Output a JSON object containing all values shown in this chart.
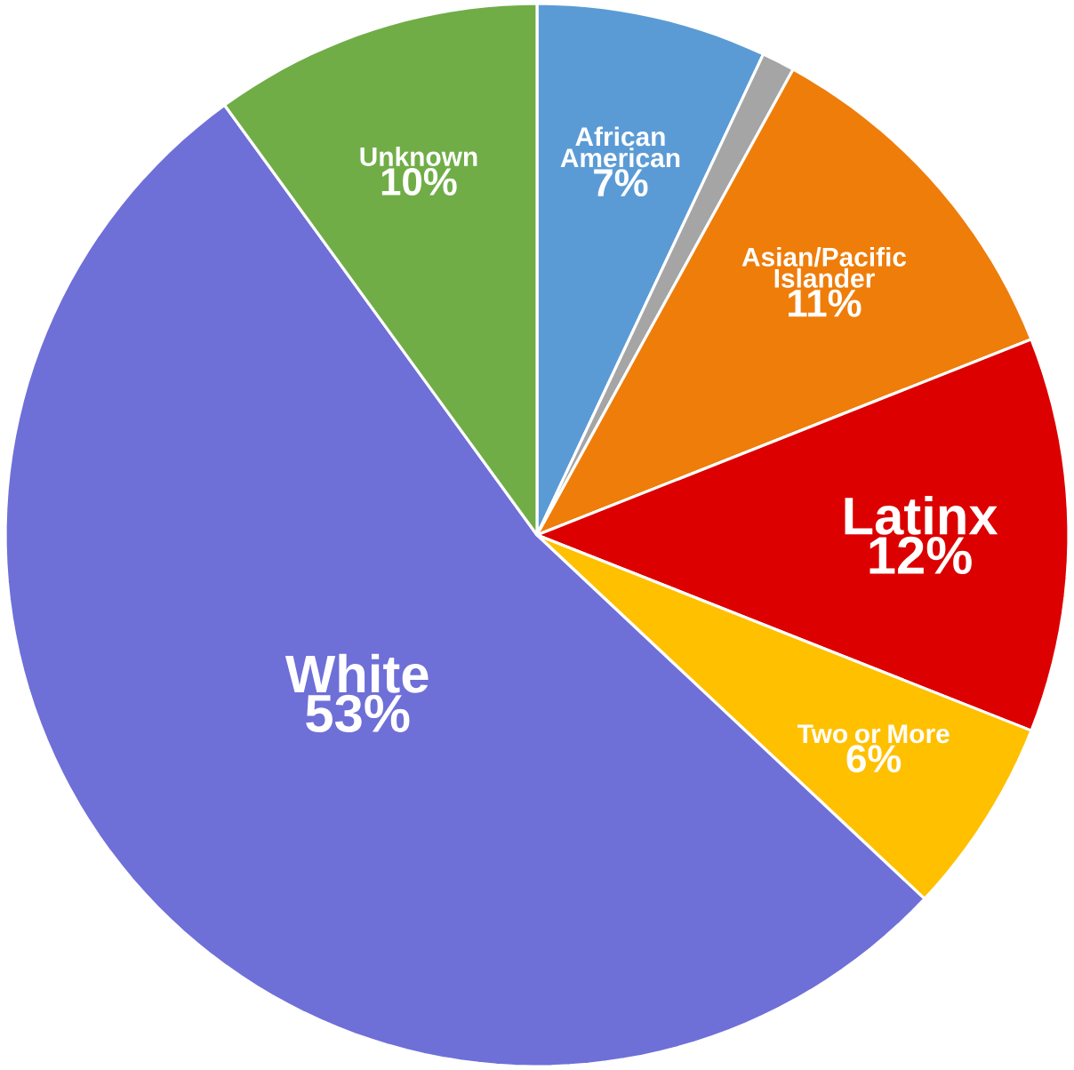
{
  "chart_data": {
    "type": "pie",
    "categories": [
      "African American",
      null,
      "Asian/Pacific Islander",
      "Latinx",
      "Two or More",
      "White",
      "Unknown"
    ],
    "values": [
      7,
      1,
      11,
      12,
      6,
      53,
      10
    ],
    "value_labels": [
      "7%",
      null,
      "11%",
      "12%",
      "6%",
      "53%",
      "10%"
    ],
    "colors": [
      "#5b9bd5",
      "#a5a5a5",
      "#ef7d0a",
      "#dc0000",
      "#ffc000",
      "#6f6fd8",
      "#70ad47"
    ]
  }
}
